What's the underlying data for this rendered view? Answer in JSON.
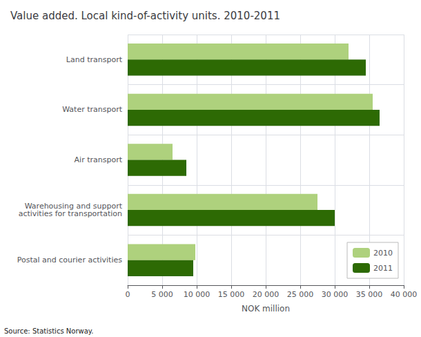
{
  "chart_data": {
    "type": "bar",
    "orientation": "horizontal",
    "title": "Value added. Local kind-of-activity units. 2010-2011",
    "categories": [
      "Postal and courier activities",
      "Warehousing and support\nactivities for transportation",
      "Air transport",
      "Water transport",
      "Land transport"
    ],
    "series": [
      {
        "name": "2010",
        "color": "#aed17d",
        "values": [
          9800,
          27500,
          6500,
          35500,
          32000
        ]
      },
      {
        "name": "2011",
        "color": "#2d6a04",
        "values": [
          9500,
          30000,
          8500,
          36500,
          34500
        ]
      }
    ],
    "xlabel": "NOK million",
    "xlim": [
      0,
      40000
    ],
    "xticks": [
      0,
      {
        "value": 5000,
        "label": "5 000"
      },
      {
        "value": 10000,
        "label": "10 000"
      },
      {
        "value": 15000,
        "label": "15 000"
      },
      {
        "value": 20000,
        "label": "20 000"
      },
      {
        "value": 25000,
        "label": "25 000"
      },
      {
        "value": 30000,
        "label": "30 000"
      },
      {
        "value": 35000,
        "label": "35 000"
      },
      {
        "value": 40000,
        "label": "40 000"
      }
    ],
    "grid": true,
    "legend": "lower right",
    "annotations": [
      "Source: Statistics Norway."
    ]
  }
}
